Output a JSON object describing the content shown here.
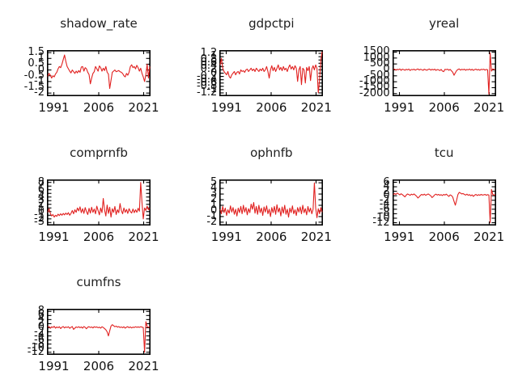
{
  "figure": {
    "background": "#ffffff",
    "line_color": "#e12120",
    "axis_color": "#000000",
    "text_color": "#111111",
    "title_color": "#1f1f1f"
  },
  "chart_data": {
    "type": "line",
    "layout": "3-column grid, 7 panels of demeaned/differenced quarterly series",
    "x_range": [
      1988.7,
      2023.3
    ],
    "x_tick_years": [
      1991,
      2006,
      2021
    ],
    "x_tick_labels": [
      "1991",
      "2006",
      "2021"
    ],
    "legend": "none",
    "grid": false,
    "panels": [
      {
        "title": "shadow_rate",
        "y_tick_values": [
          1.5,
          1.0,
          0.5,
          0.0,
          -0.5,
          -1.0,
          -1.5,
          -2.0
        ],
        "y_tick_labels": [
          "1.5",
          "1",
          "0.5",
          "0",
          "-0.5",
          "-1",
          "-1.5",
          "-2"
        ],
        "ylim": [
          -2.2,
          1.65
        ],
        "values": [
          -0.55,
          -0.3,
          -0.45,
          -0.7,
          -0.5,
          -0.6,
          -0.35,
          -0.2,
          0.1,
          0.3,
          0.2,
          0.5,
          0.9,
          1.3,
          0.75,
          0.3,
          0.1,
          -0.1,
          -0.25,
          0.0,
          -0.15,
          -0.3,
          -0.1,
          -0.25,
          -0.05,
          -0.2,
          0.25,
          0.3,
          -0.1,
          0.2,
          0.1,
          -0.2,
          -0.4,
          -1.2,
          -0.7,
          -0.3,
          -0.15,
          0.3,
          0.1,
          -0.1,
          0.35,
          0.2,
          -0.1,
          0.15,
          -0.05,
          0.3,
          -0.2,
          -0.35,
          -1.6,
          -0.9,
          -0.2,
          -0.1,
          0.0,
          -0.15,
          -0.1,
          -0.05,
          -0.15,
          -0.2,
          -0.3,
          -0.5,
          -0.6,
          -0.3,
          -0.45,
          -0.2,
          0.3,
          0.45,
          0.2,
          0.3,
          0.1,
          0.4,
          0.2,
          -0.1,
          0.15,
          -0.3,
          -0.6,
          -1.0,
          -0.4,
          0.5,
          -0.7,
          0.3
        ]
      },
      {
        "title": "gdpctpi",
        "y_tick_values": [
          1.2,
          1.0,
          0.8,
          0.6,
          0.4,
          0.2,
          0.0,
          -0.2,
          -0.4,
          -0.6,
          -0.8,
          -1.0,
          -1.2
        ],
        "y_tick_labels": [
          "1.2",
          "1",
          "0.8",
          "0.6",
          "0.4",
          "0.2",
          "0",
          "-0.2",
          "-0.4",
          "-0.6",
          "-0.8",
          "-1",
          "-1.2"
        ],
        "ylim": [
          -1.35,
          1.35
        ],
        "values": [
          0.5,
          0.9,
          0.3,
          0.1,
          0.0,
          -0.1,
          0.1,
          -0.2,
          -0.3,
          -0.1,
          0.0,
          0.1,
          -0.1,
          0.05,
          0.1,
          -0.05,
          0.2,
          0.1,
          0.15,
          0.05,
          0.2,
          0.25,
          0.1,
          0.2,
          0.3,
          0.15,
          0.25,
          0.1,
          0.3,
          0.2,
          0.1,
          0.25,
          0.15,
          0.3,
          0.1,
          0.2,
          0.4,
          0.1,
          -0.3,
          0.2,
          0.45,
          0.15,
          0.35,
          0.1,
          0.3,
          0.5,
          0.2,
          0.35,
          0.15,
          0.4,
          0.2,
          0.3,
          0.1,
          0.35,
          0.5,
          0.25,
          0.4,
          0.2,
          0.45,
          0.3,
          -0.5,
          0.2,
          0.4,
          -0.7,
          0.3,
          0.2,
          -0.6,
          0.35,
          0.15,
          0.4,
          -0.45,
          0.25,
          0.45,
          0.2,
          0.5,
          0.3,
          -1.2,
          -0.4,
          0.8,
          1.3
        ]
      },
      {
        "title": "yreal",
        "y_tick_values": [
          1500,
          1000,
          500,
          0,
          -500,
          -1000,
          -1500,
          -2000
        ],
        "y_tick_labels": [
          "1500",
          "1000",
          "500",
          "0",
          "-500",
          "-1000",
          "-1500",
          "-2000"
        ],
        "ylim": [
          -2150,
          1600
        ],
        "values": [
          30,
          60,
          -20,
          50,
          10,
          80,
          -40,
          60,
          20,
          -30,
          50,
          0,
          70,
          -50,
          40,
          10,
          60,
          -20,
          30,
          80,
          -10,
          50,
          20,
          -40,
          60,
          10,
          -30,
          40,
          70,
          -20,
          50,
          0,
          60,
          -40,
          30,
          10,
          -60,
          40,
          -100,
          -150,
          50,
          20,
          60,
          -30,
          40,
          -80,
          -200,
          -450,
          -250,
          -60,
          30,
          80,
          -20,
          50,
          10,
          60,
          -30,
          40,
          0,
          70,
          -20,
          50,
          -40,
          30,
          60,
          -10,
          40,
          -30,
          50,
          20,
          60,
          -20,
          40,
          10,
          -2050,
          1450,
          -100,
          80,
          30,
          50
        ]
      },
      {
        "title": "comprnfb",
        "y_tick_values": [
          8,
          7,
          6,
          5,
          4,
          3,
          2,
          1,
          0,
          -1,
          -2,
          -3
        ],
        "y_tick_labels": [
          "8",
          "7",
          "6",
          "5",
          "4",
          "3",
          "2",
          "1",
          "0",
          "-1",
          "-2",
          "-3"
        ],
        "ylim": [
          -3.6,
          8.6
        ],
        "values": [
          -0.2,
          0.8,
          -0.5,
          -1.2,
          -0.8,
          -1.5,
          -1.0,
          -1.3,
          -0.7,
          -1.1,
          -0.6,
          -1.0,
          -0.5,
          -0.9,
          -0.4,
          -0.8,
          -0.3,
          -1.0,
          -0.5,
          0.3,
          -0.6,
          0.5,
          -0.2,
          1.0,
          0.2,
          1.3,
          -0.3,
          0.8,
          -0.5,
          1.1,
          0.0,
          -0.8,
          0.9,
          -0.4,
          1.2,
          -0.2,
          0.7,
          -0.6,
          1.5,
          0.3,
          -0.9,
          1.0,
          -0.3,
          3.6,
          0.5,
          -1.2,
          1.8,
          -0.5,
          1.2,
          -1.5,
          0.8,
          -0.2,
          1.4,
          -0.8,
          0.5,
          -0.3,
          2.2,
          0.3,
          -0.6,
          1.0,
          -0.2,
          0.6,
          -0.5,
          0.8,
          0.0,
          -0.4,
          0.7,
          -0.3,
          0.5,
          -0.2,
          0.9,
          0.1,
          8.0,
          2.5,
          -2.0,
          1.0,
          0.3,
          1.5,
          0.5,
          1.0
        ]
      },
      {
        "title": "ophnfb",
        "y_tick_values": [
          5,
          4,
          3,
          2,
          1,
          0,
          -1,
          -2
        ],
        "y_tick_labels": [
          "5",
          "4",
          "3",
          "2",
          "1",
          "0",
          "-1",
          "-2"
        ],
        "ylim": [
          -2.45,
          5.45
        ],
        "values": [
          0.3,
          -0.5,
          0.8,
          -0.3,
          0.5,
          -0.8,
          0.2,
          -0.4,
          0.9,
          -0.2,
          0.6,
          -0.6,
          0.3,
          -0.9,
          0.5,
          -0.3,
          0.8,
          -0.5,
          1.0,
          -0.2,
          0.6,
          -0.7,
          0.4,
          -0.3,
          1.2,
          0.3,
          1.5,
          -0.4,
          0.8,
          -0.6,
          1.0,
          -0.3,
          0.5,
          -0.8,
          0.7,
          -0.2,
          0.9,
          -0.5,
          0.3,
          -1.0,
          0.6,
          -0.3,
          0.8,
          -0.6,
          1.1,
          -0.2,
          0.5,
          -0.9,
          0.7,
          -0.4,
          1.0,
          -0.6,
          0.3,
          -1.1,
          0.5,
          -0.3,
          0.9,
          -0.5,
          0.2,
          -0.8,
          0.6,
          -0.2,
          0.7,
          -0.5,
          1.0,
          -0.3,
          0.4,
          -0.7,
          0.8,
          -0.2,
          0.5,
          -0.5,
          0.3,
          5.0,
          0.5,
          -1.2,
          0.4,
          -0.5,
          0.6,
          -0.2
        ]
      },
      {
        "title": "tcu",
        "y_tick_values": [
          6,
          4,
          2,
          0,
          -2,
          -4,
          -6,
          -8,
          -10,
          -12
        ],
        "y_tick_labels": [
          "6",
          "4",
          "2",
          "0",
          "-2",
          "-4",
          "-6",
          "-8",
          "-10",
          "-12"
        ],
        "ylim": [
          -12.9,
          6.9
        ],
        "values": [
          0.5,
          1.0,
          0.6,
          1.2,
          0.8,
          0.4,
          0.9,
          0.5,
          0.0,
          -0.5,
          0.3,
          0.8,
          0.5,
          0.2,
          0.7,
          0.4,
          0.8,
          0.3,
          -0.2,
          -1.0,
          -0.5,
          0.2,
          0.6,
          0.3,
          0.7,
          0.2,
          0.5,
          0.8,
          0.4,
          0.0,
          -0.8,
          -0.3,
          0.4,
          0.7,
          0.3,
          0.6,
          0.2,
          0.5,
          0.1,
          0.6,
          0.3,
          0.7,
          0.2,
          -0.3,
          0.4,
          0.1,
          -0.6,
          -2.5,
          -4.2,
          -2.0,
          0.5,
          1.5,
          1.2,
          0.8,
          1.0,
          0.6,
          0.3,
          0.7,
          0.2,
          0.5,
          0.0,
          0.4,
          -0.3,
          0.3,
          0.6,
          0.1,
          0.5,
          0.2,
          0.6,
          0.3,
          0.4,
          0.6,
          0.2,
          0.5,
          0.3,
          -12.0,
          2.8,
          0.6,
          0.3,
          0.5
        ]
      },
      {
        "title": "cumfns",
        "y_tick_values": [
          8,
          6,
          4,
          2,
          0,
          -2,
          -4,
          -6,
          -8,
          -10,
          -12
        ],
        "y_tick_labels": [
          "8",
          "6",
          "4",
          "2",
          "0",
          "-2",
          "-4",
          "-6",
          "-8",
          "-10",
          "-12"
        ],
        "ylim": [
          -12.9,
          8.9
        ],
        "values": [
          0.2,
          0.6,
          -0.3,
          0.5,
          0.1,
          0.7,
          -0.2,
          0.4,
          0.0,
          0.5,
          -0.4,
          0.3,
          0.6,
          -0.1,
          0.4,
          0.1,
          0.5,
          -0.3,
          0.2,
          0.6,
          -0.8,
          -0.2,
          0.4,
          0.1,
          0.5,
          0.0,
          0.4,
          -0.2,
          0.6,
          0.2,
          -0.5,
          0.3,
          0.5,
          0.1,
          0.4,
          -0.1,
          0.5,
          0.2,
          0.4,
          0.0,
          0.3,
          -0.2,
          0.5,
          0.1,
          -0.4,
          -1.0,
          -2.0,
          -4.0,
          -1.5,
          0.8,
          1.5,
          1.0,
          0.5,
          0.8,
          0.3,
          0.6,
          0.1,
          0.4,
          0.0,
          0.5,
          -0.2,
          0.3,
          0.5,
          0.0,
          0.4,
          -0.1,
          0.3,
          0.1,
          0.5,
          0.2,
          0.4,
          0.2,
          0.5,
          0.3,
          0.1,
          -12.0,
          3.0,
          0.6,
          0.2,
          0.4
        ]
      }
    ]
  }
}
